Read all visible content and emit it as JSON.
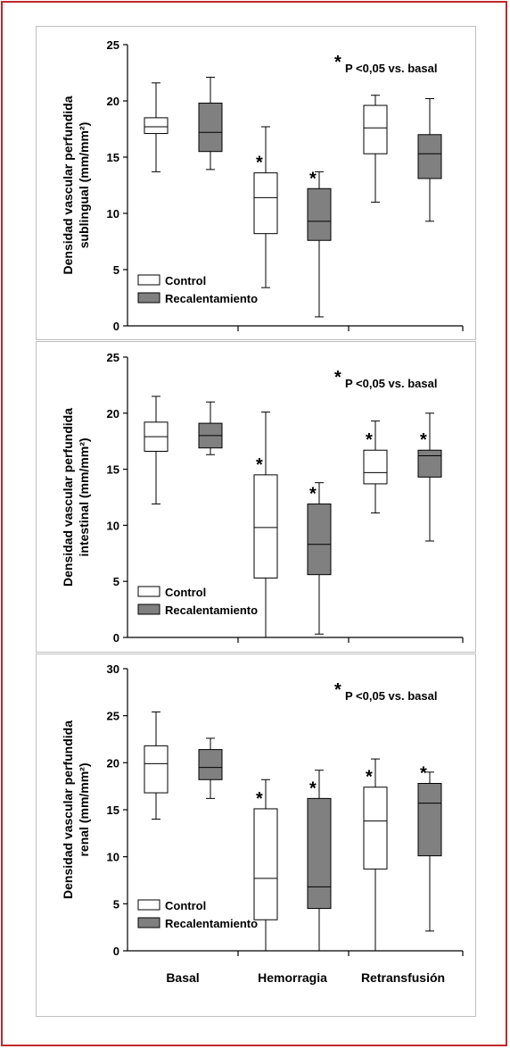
{
  "chart_data": [
    {
      "type": "box",
      "ylabel_lines": [
        "Densidad vascular perfundida",
        "sublingual (mm/mm²)"
      ],
      "ylim": [
        0,
        25
      ],
      "yticks": [
        0,
        5,
        10,
        15,
        20,
        25
      ],
      "annotation": {
        "star": "*",
        "text": "P <0,05 vs. basal"
      },
      "legend": {
        "position": "bottom-left"
      },
      "categories": [
        "Basal",
        "Hemorragia",
        "Retransfusión"
      ],
      "series": [
        {
          "name": "Control",
          "color": "#ffffff",
          "boxes": [
            {
              "min": 13.7,
              "q1": 17.1,
              "median": 17.7,
              "q3": 18.5,
              "max": 21.6,
              "star": false
            },
            {
              "min": 3.4,
              "q1": 8.2,
              "median": 11.4,
              "q3": 13.6,
              "max": 17.7,
              "star": true
            },
            {
              "min": 11.0,
              "q1": 15.3,
              "median": 17.6,
              "q3": 19.6,
              "max": 20.5,
              "star": false
            }
          ]
        },
        {
          "name": "Recalentamiento",
          "color": "#808080",
          "boxes": [
            {
              "min": 13.9,
              "q1": 15.5,
              "median": 17.2,
              "q3": 19.8,
              "max": 22.1,
              "star": false
            },
            {
              "min": 0.8,
              "q1": 7.6,
              "median": 9.3,
              "q3": 12.2,
              "max": 13.7,
              "star": true
            },
            {
              "min": 9.3,
              "q1": 13.1,
              "median": 15.3,
              "q3": 17.0,
              "max": 20.2,
              "star": false
            }
          ]
        }
      ]
    },
    {
      "type": "box",
      "ylabel_lines": [
        "Densidad vascular perfundida",
        "intestinal (mm/mm²)"
      ],
      "ylim": [
        0,
        25
      ],
      "yticks": [
        0,
        5,
        10,
        15,
        20,
        25
      ],
      "annotation": {
        "star": "*",
        "text": "P <0,05 vs. basal"
      },
      "legend": {
        "position": "bottom-left"
      },
      "categories": [
        "Basal",
        "Hemorragia",
        "Retransfusión"
      ],
      "series": [
        {
          "name": "Control",
          "color": "#ffffff",
          "boxes": [
            {
              "min": 11.9,
              "q1": 16.6,
              "median": 17.9,
              "q3": 19.2,
              "max": 21.5,
              "star": false
            },
            {
              "min": 0.0,
              "q1": 5.3,
              "median": 9.8,
              "q3": 14.5,
              "max": 20.1,
              "star": true
            },
            {
              "min": 11.1,
              "q1": 13.7,
              "median": 14.7,
              "q3": 16.7,
              "max": 19.3,
              "star": true
            }
          ]
        },
        {
          "name": "Recalentamiento",
          "color": "#808080",
          "boxes": [
            {
              "min": 16.3,
              "q1": 16.9,
              "median": 18.0,
              "q3": 19.1,
              "max": 21.0,
              "star": false
            },
            {
              "min": 0.3,
              "q1": 5.6,
              "median": 8.3,
              "q3": 11.9,
              "max": 13.8,
              "star": true
            },
            {
              "min": 8.6,
              "q1": 14.3,
              "median": 16.2,
              "q3": 16.7,
              "max": 20.0,
              "star": true
            }
          ]
        }
      ]
    },
    {
      "type": "box",
      "ylabel_lines": [
        "Densidad vascular perfundida",
        "renal (mm/mm²)"
      ],
      "ylim": [
        0,
        30
      ],
      "yticks": [
        0,
        5,
        10,
        15,
        20,
        25,
        30
      ],
      "annotation": {
        "star": "*",
        "text": "P <0,05 vs. basal"
      },
      "legend": {
        "position": "bottom-left"
      },
      "categories": [
        "Basal",
        "Hemorragia",
        "Retransfusión"
      ],
      "series": [
        {
          "name": "Control",
          "color": "#ffffff",
          "boxes": [
            {
              "min": 14.0,
              "q1": 16.8,
              "median": 19.9,
              "q3": 21.8,
              "max": 25.4,
              "star": false
            },
            {
              "min": 0.0,
              "q1": 3.3,
              "median": 7.7,
              "q3": 15.1,
              "max": 18.2,
              "star": true
            },
            {
              "min": 0.0,
              "q1": 8.7,
              "median": 13.8,
              "q3": 17.4,
              "max": 20.4,
              "star": true
            }
          ]
        },
        {
          "name": "Recalentamiento",
          "color": "#808080",
          "boxes": [
            {
              "min": 16.2,
              "q1": 18.2,
              "median": 19.5,
              "q3": 21.4,
              "max": 22.6,
              "star": false
            },
            {
              "min": 0.0,
              "q1": 4.5,
              "median": 6.8,
              "q3": 16.2,
              "max": 19.2,
              "star": true
            },
            {
              "min": 2.1,
              "q1": 10.1,
              "median": 15.7,
              "q3": 17.8,
              "max": 19.0,
              "star": true
            }
          ]
        }
      ]
    }
  ]
}
